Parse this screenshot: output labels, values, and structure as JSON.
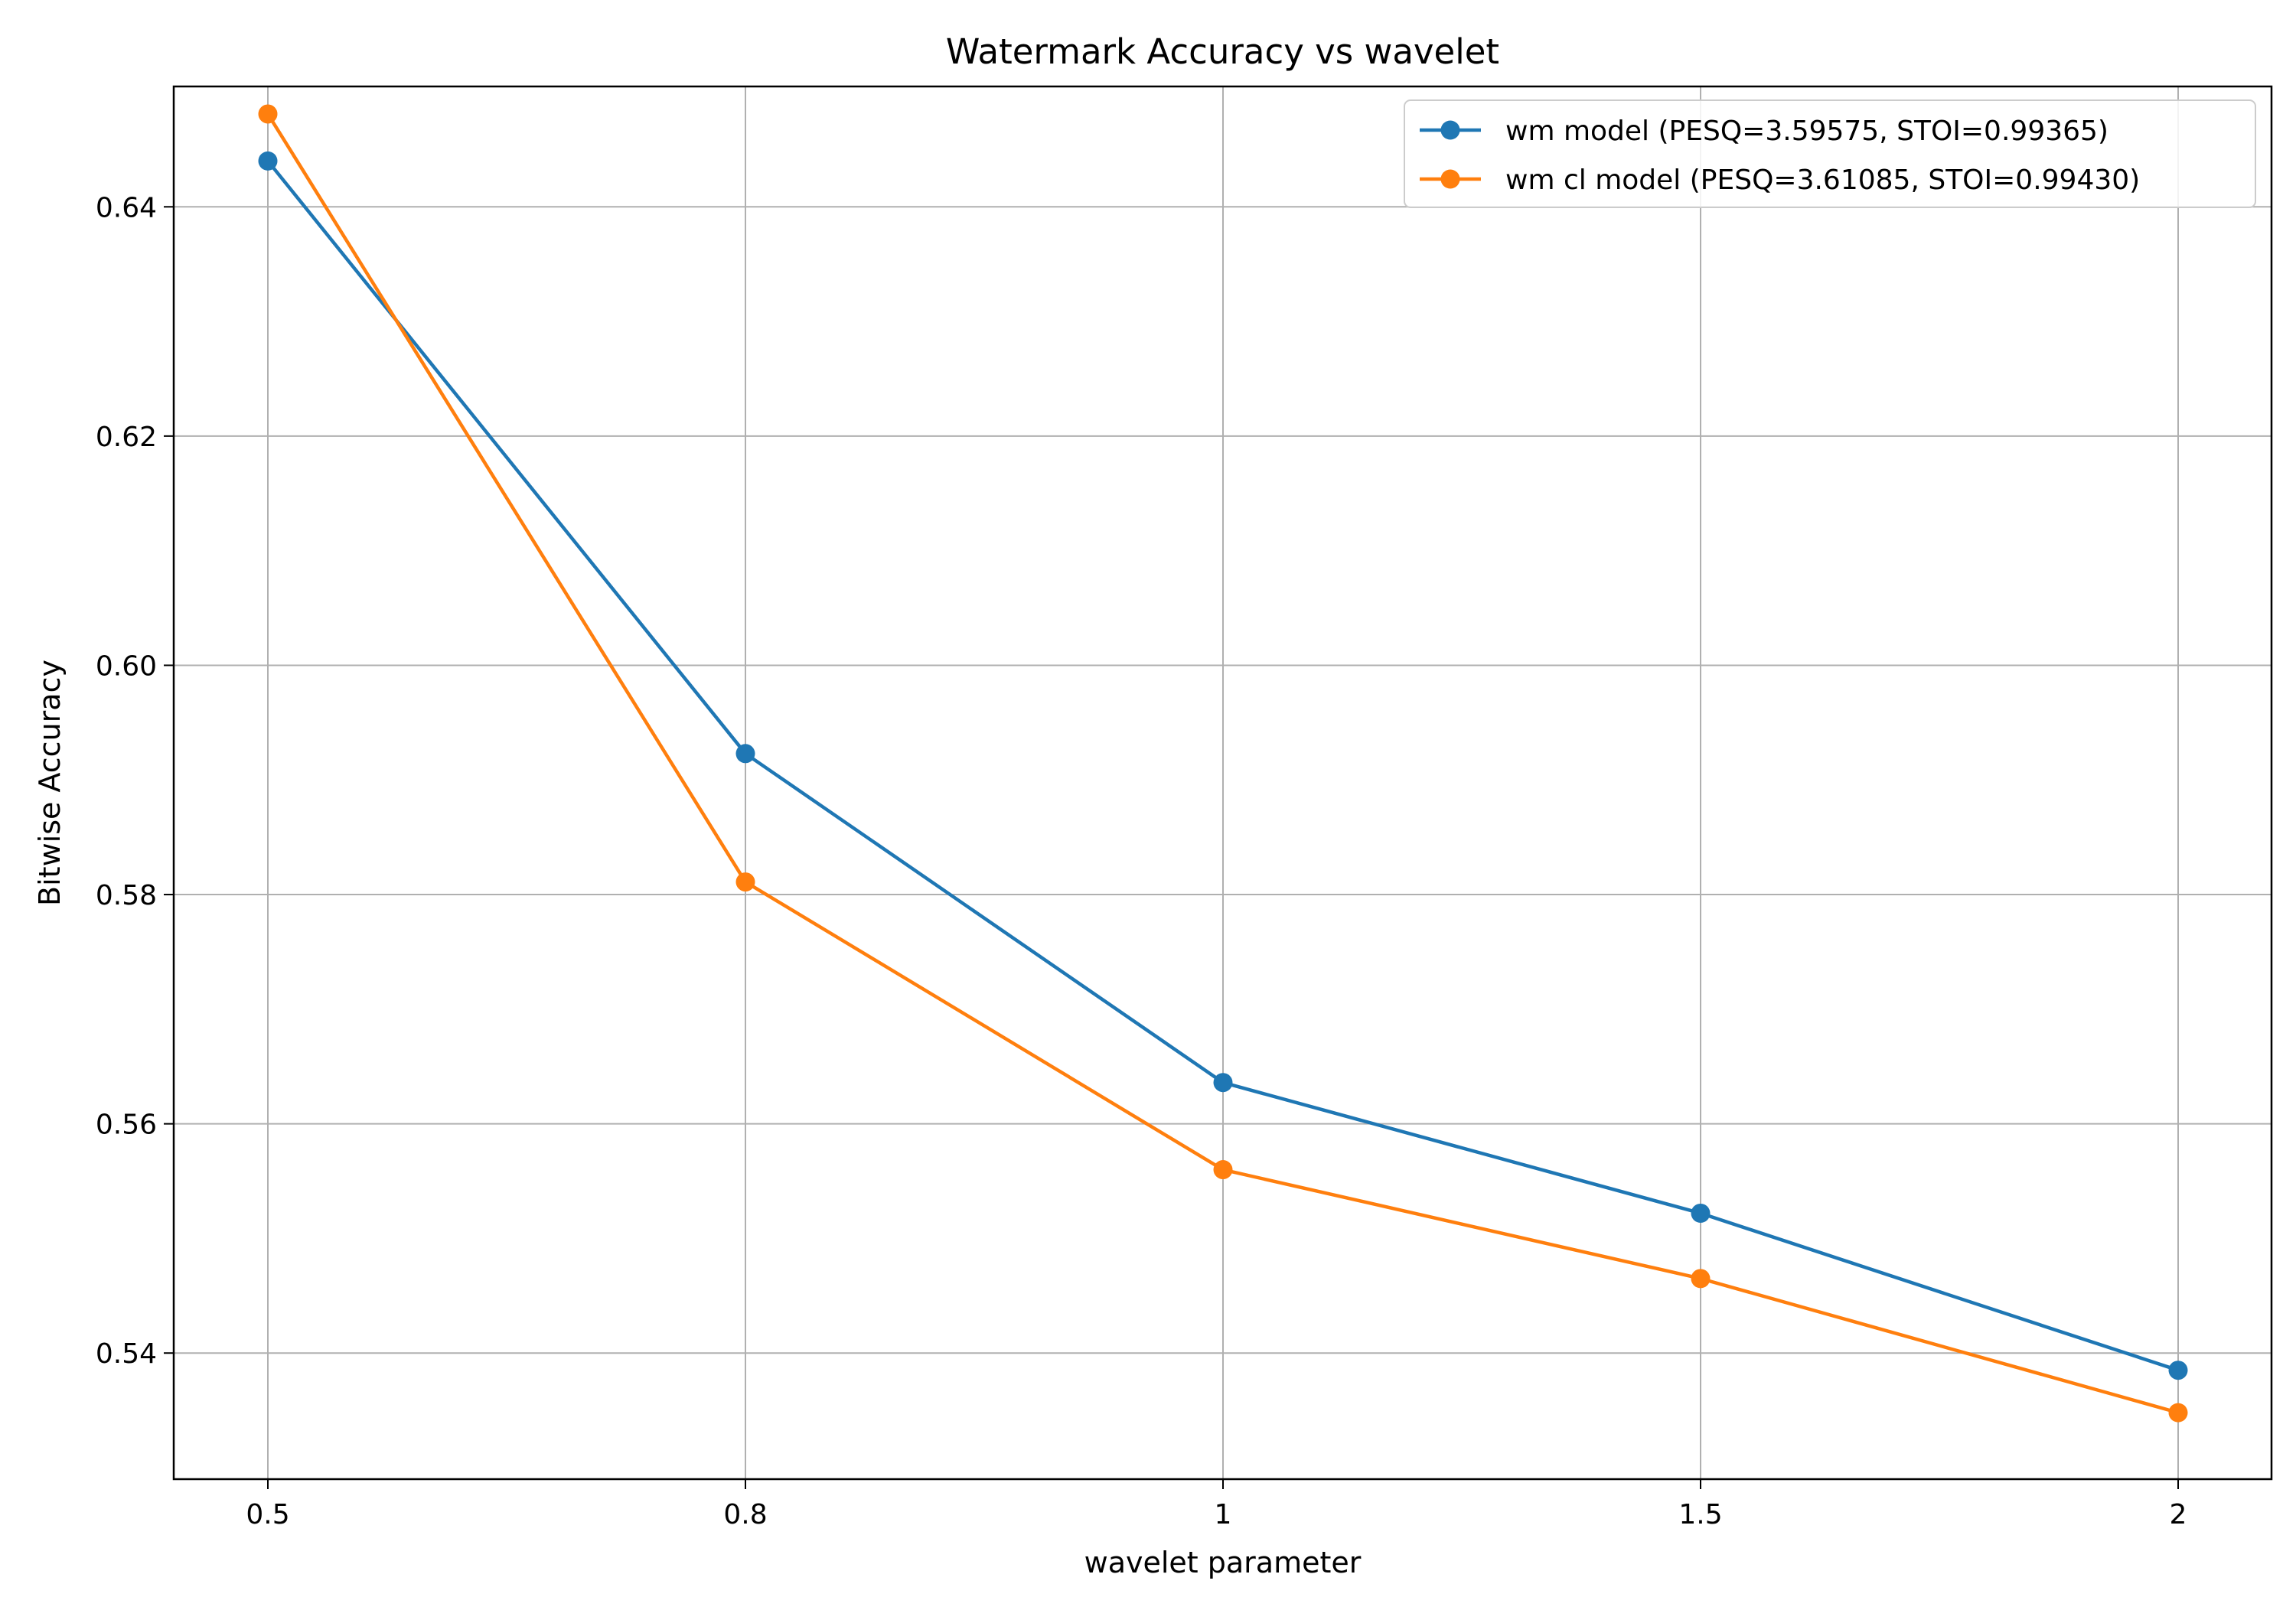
{
  "chart_data": {
    "type": "line",
    "title": "Watermark Accuracy vs wavelet",
    "xlabel": "wavelet parameter",
    "ylabel": "Bitwise Accuracy",
    "x_scale": "categorical",
    "categories": [
      "0.5",
      "0.8",
      "1",
      "1.5",
      "2"
    ],
    "ylim": [
      0.529,
      0.6505
    ],
    "y_ticks": [
      0.54,
      0.56,
      0.58,
      0.6,
      0.62,
      0.64
    ],
    "y_tick_labels": [
      "0.54",
      "0.56",
      "0.58",
      "0.60",
      "0.62",
      "0.64"
    ],
    "grid": true,
    "legend_position": "top-right",
    "series": [
      {
        "name": "wm model (PESQ=3.59575, STOI=0.99365)",
        "color": "#1f77b4",
        "marker": "circle",
        "values": [
          0.644,
          0.5923,
          0.5636,
          0.5522,
          0.5385
        ]
      },
      {
        "name": "wm cl model (PESQ=3.61085, STOI=0.99430)",
        "color": "#ff7f0e",
        "marker": "circle",
        "values": [
          0.6481,
          0.5811,
          0.556,
          0.5465,
          0.5348
        ]
      }
    ]
  }
}
